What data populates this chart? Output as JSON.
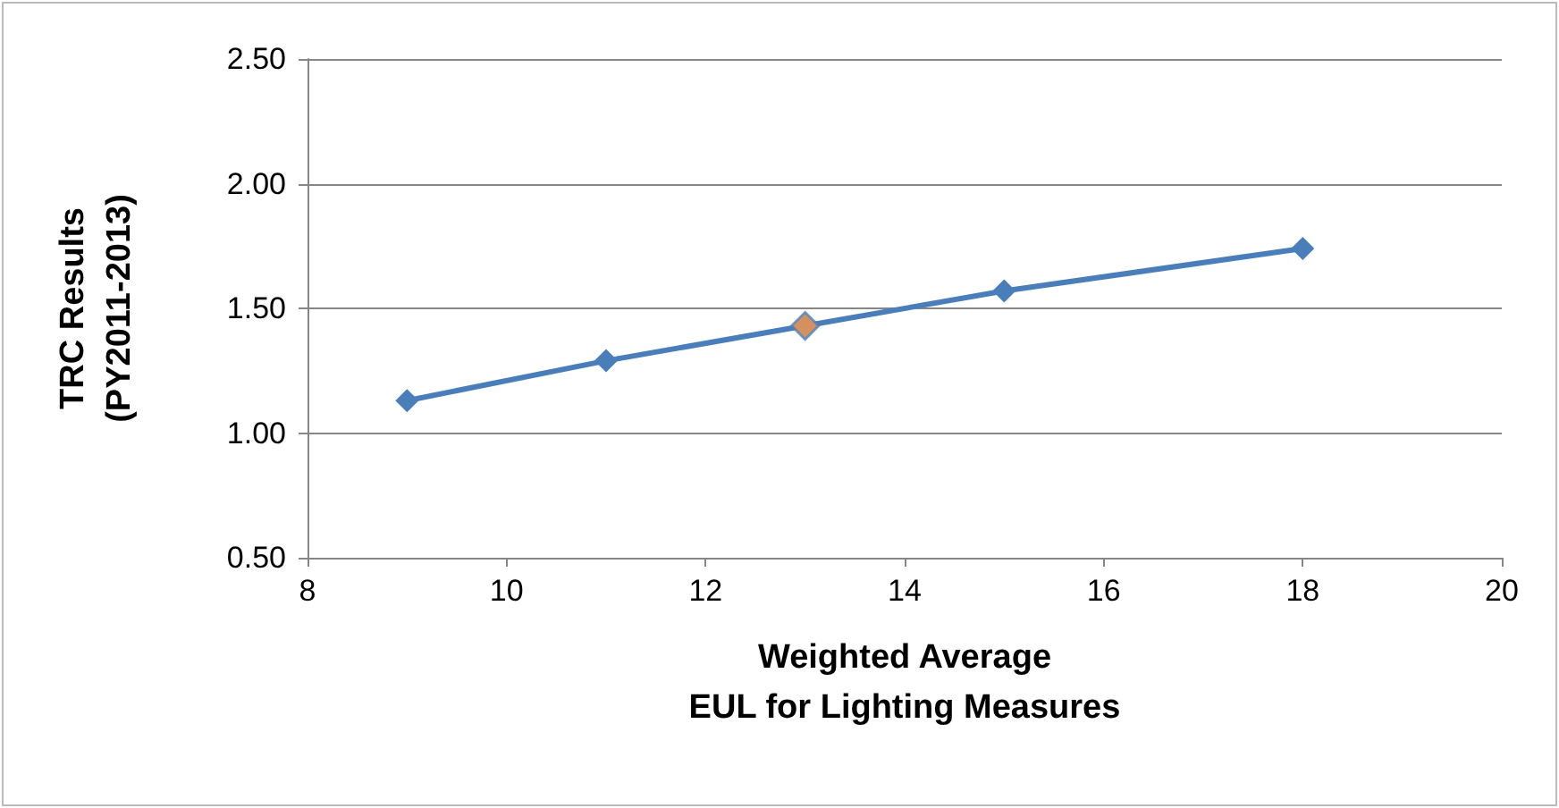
{
  "chart_data": {
    "type": "line",
    "ylabel": "TRC Results\n(PY2011-2013)",
    "xlabel": "Weighted Average\nEUL for Lighting Measures",
    "series": [
      {
        "color": "#4a7ebb",
        "x": [
          9,
          11,
          13,
          15,
          18
        ],
        "values": [
          1.13,
          1.29,
          1.43,
          1.57,
          1.74
        ]
      },
      {
        "type": "scatter",
        "color": "#f79646",
        "x": [
          13
        ],
        "values": [
          1.43
        ]
      }
    ],
    "xlim": [
      8,
      20
    ],
    "xticks": [
      8,
      10,
      12,
      14,
      16,
      18,
      20
    ],
    "ylim": [
      0.5,
      2.5
    ],
    "yticks": [
      {
        "value": 0.5,
        "label": "0.50"
      },
      {
        "value": 1,
        "label": "1.00"
      },
      {
        "value": 1.5,
        "label": "1.50"
      },
      {
        "value": 2,
        "label": "2.00"
      },
      {
        "value": 2.5,
        "label": "2.50"
      }
    ],
    "grid": "y",
    "marker": "diamond",
    "line_style": "solid"
  }
}
